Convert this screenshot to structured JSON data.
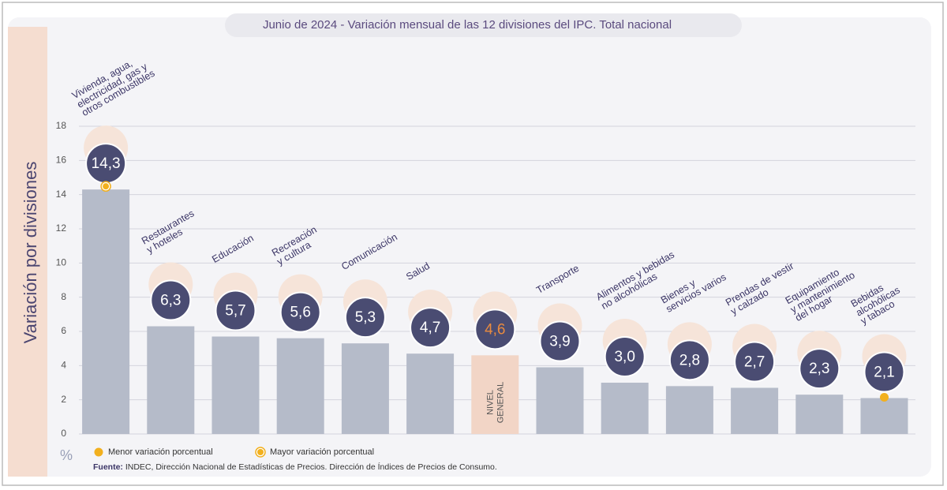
{
  "chart_data": {
    "type": "bar",
    "title": "Junio de 2024 - Variación mensual de las 12 divisiones del IPC. Total nacional",
    "y_label": "Variación por divisiones",
    "y_unit": "%",
    "categories": [
      "Vivienda, agua,\nelectricidad, gas y\notros combustibles",
      "Restaurantes\ny hoteles",
      "Educación",
      "Recreación\ny cultura",
      "Comunicación",
      "Salud",
      "NIVEL\nGENERAL",
      "Transporte",
      "Alimentos y bebidas\nno alcohólicas",
      "Bienes y\nservicios varios",
      "Prendas de vestir\ny calzado",
      "Equipamiento\ny mantenimiento\ndel hogar",
      "Bebidas\nalcohólicas\ny tabaco"
    ],
    "values": [
      14.3,
      6.3,
      5.7,
      5.6,
      5.3,
      4.7,
      4.6,
      3.9,
      3.0,
      2.8,
      2.7,
      2.3,
      2.1
    ],
    "value_labels": [
      "14,3",
      "6,3",
      "5,7",
      "5,6",
      "5,3",
      "4,7",
      "4,6",
      "3,9",
      "3,0",
      "2,8",
      "2,7",
      "2,3",
      "2,1"
    ],
    "bar_colors": [
      "#b5bbc9",
      "#b5bbc9",
      "#b5bbc9",
      "#b5bbc9",
      "#b5bbc9",
      "#b5bbc9",
      "#f2d5c6",
      "#b5bbc9",
      "#b5bbc9",
      "#b5bbc9",
      "#b5bbc9",
      "#b5bbc9",
      "#b5bbc9"
    ],
    "value_label_colors": [
      "#ffffff",
      "#ffffff",
      "#ffffff",
      "#ffffff",
      "#ffffff",
      "#ffffff",
      "#e98b3f",
      "#ffffff",
      "#ffffff",
      "#ffffff",
      "#ffffff",
      "#ffffff",
      "#ffffff"
    ],
    "reference_index": 6,
    "ylim": [
      0,
      18
    ],
    "yticks": [
      0,
      2,
      4,
      6,
      8,
      10,
      12,
      14,
      16,
      18
    ],
    "grid": true,
    "markers": [
      {
        "name": "Menor variación porcentual",
        "index": 12,
        "style": "dot",
        "color": "#f2b01e"
      },
      {
        "name": "Mayor variación porcentual",
        "index": 0,
        "style": "ring",
        "color": "#f2b01e"
      }
    ],
    "source_label": "Fuente:",
    "source": "INDEC, Dirección Nacional de Estadísticas de Precios. Dirección de Índices de Precios de Consumo."
  }
}
